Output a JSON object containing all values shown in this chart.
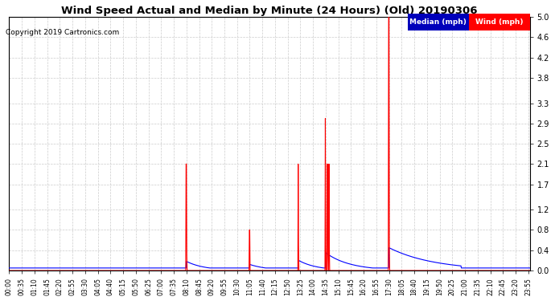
{
  "title": "Wind Speed Actual and Median by Minute (24 Hours) (Old) 20190306",
  "copyright": "Copyright 2019 Cartronics.com",
  "legend_median_label": "Median (mph)",
  "legend_wind_label": "Wind (mph)",
  "median_color": "#0000ff",
  "wind_color": "#ff0000",
  "median_bg": "#0000bb",
  "wind_bg": "#ff0000",
  "ylim": [
    0.0,
    5.0
  ],
  "yticks": [
    0.0,
    0.4,
    0.8,
    1.2,
    1.7,
    2.1,
    2.5,
    2.9,
    3.3,
    3.8,
    4.2,
    4.6,
    5.0
  ],
  "background_color": "#ffffff",
  "grid_color": "#cccccc",
  "xtick_interval": 35,
  "n_minutes": 1440
}
